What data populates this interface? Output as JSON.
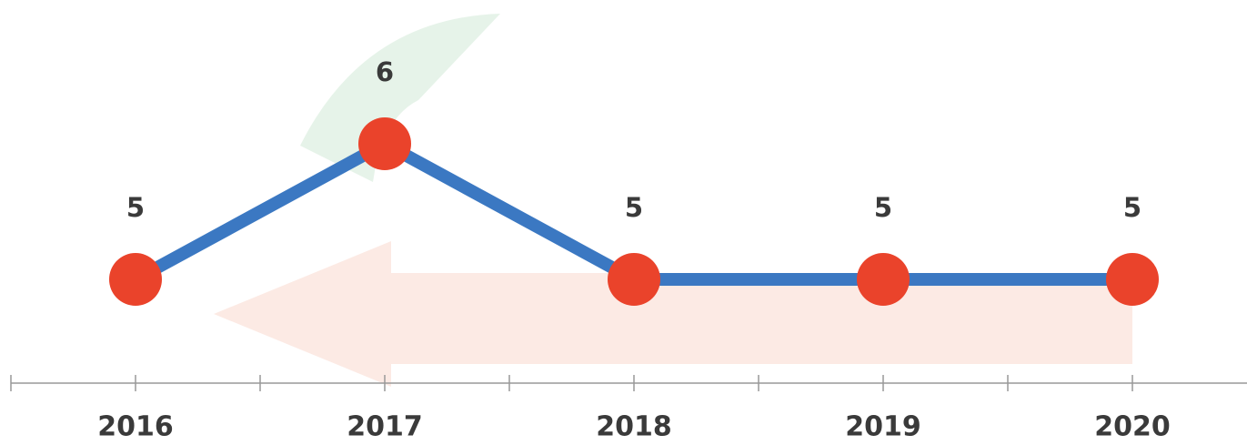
{
  "chart_data": {
    "type": "line",
    "categories": [
      "2016",
      "2017",
      "2018",
      "2019",
      "2020"
    ],
    "series": [
      {
        "values": [
          5,
          6,
          5,
          5,
          5
        ],
        "color": "#3b78c2",
        "marker_color": "#ea432b"
      }
    ]
  }
}
